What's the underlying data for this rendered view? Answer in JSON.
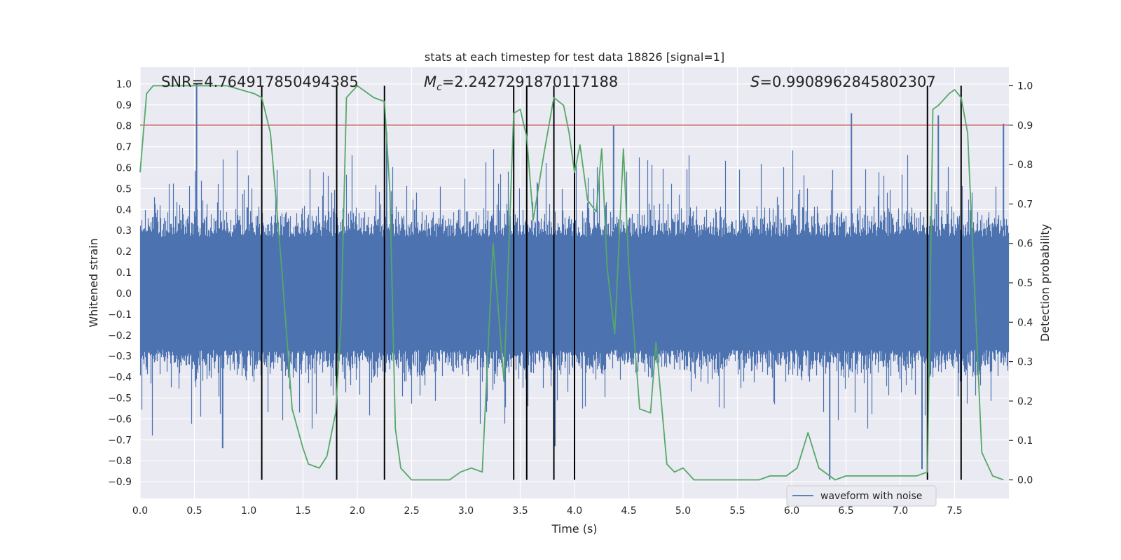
{
  "chart_data": {
    "type": "line",
    "title": "stats at each timestep for test data 18826 [signal=1]",
    "xlabel": "Time (s)",
    "ylabel": "Whitened strain",
    "y2label": "Detection probability",
    "xlim": [
      0.0,
      8.0
    ],
    "ylim": [
      -0.98,
      1.08
    ],
    "y2lim": [
      -0.047,
      1.047
    ],
    "xticks": [
      "0.0",
      "0.5",
      "1.0",
      "1.5",
      "2.0",
      "2.5",
      "3.0",
      "3.5",
      "4.0",
      "4.5",
      "5.0",
      "5.5",
      "6.0",
      "6.5",
      "7.0",
      "7.5"
    ],
    "yticks": [
      "1.0",
      "0.9",
      "0.8",
      "0.7",
      "0.6",
      "0.5",
      "0.4",
      "0.3",
      "0.2",
      "0.1",
      "0.0",
      "-0.1",
      "-0.2",
      "-0.3",
      "-0.4",
      "-0.5",
      "-0.6",
      "-0.7",
      "-0.8",
      "-0.9"
    ],
    "y2ticks": [
      "1.0",
      "0.9",
      "0.8",
      "0.7",
      "0.6",
      "0.5",
      "0.4",
      "0.3",
      "0.2",
      "0.1",
      "0.0"
    ],
    "grid": true,
    "annotations": {
      "snr": "SNR=4.764917850494385",
      "mc_symbol": "M",
      "mc_sub": "c",
      "mc_value": "=2.2427291870117188",
      "s_symbol": "S",
      "s_value": "=0.9908962845802307"
    },
    "threshold": {
      "y2": 0.9,
      "color": "#c44e52"
    },
    "vlines": [
      1.12,
      1.81,
      2.25,
      3.44,
      3.56,
      3.81,
      4.0,
      7.25,
      7.56
    ],
    "series": [
      {
        "name": "waveform with noise",
        "axis": "left",
        "color": "#4c72b0",
        "style": "noisy strain, spread about 0.25, peak 1.0 near t=0.52",
        "spikes": [
          {
            "t": 0.52,
            "y": 1.0
          },
          {
            "t": 2.27,
            "y": 0.77
          },
          {
            "t": 4.36,
            "y": 0.8
          },
          {
            "t": 6.55,
            "y": 0.86
          },
          {
            "t": 7.35,
            "y": 0.85
          },
          {
            "t": 7.95,
            "y": 0.81
          },
          {
            "t": 0.76,
            "y": -0.74
          },
          {
            "t": 6.35,
            "y": -0.89
          },
          {
            "t": 7.2,
            "y": -0.84
          },
          {
            "t": 3.82,
            "y": -0.73
          }
        ]
      },
      {
        "name": "detection probability",
        "axis": "right",
        "color": "#55a868",
        "x": [
          0.0,
          0.06,
          0.12,
          0.25,
          0.5,
          0.8,
          1.05,
          1.12,
          1.2,
          1.3,
          1.4,
          1.5,
          1.55,
          1.65,
          1.72,
          1.8,
          1.85,
          1.9,
          2.0,
          2.05,
          2.15,
          2.25,
          2.3,
          2.35,
          2.4,
          2.5,
          2.6,
          2.7,
          2.85,
          2.95,
          3.05,
          3.15,
          3.25,
          3.35,
          3.44,
          3.5,
          3.56,
          3.62,
          3.72,
          3.81,
          3.9,
          3.95,
          4.0,
          4.05,
          4.12,
          4.2,
          4.25,
          4.3,
          4.37,
          4.45,
          4.5,
          4.6,
          4.7,
          4.75,
          4.85,
          4.92,
          5.0,
          5.1,
          5.2,
          5.4,
          5.5,
          5.7,
          5.8,
          5.95,
          6.05,
          6.15,
          6.25,
          6.4,
          6.5,
          6.6,
          6.8,
          7.0,
          7.15,
          7.25,
          7.3,
          7.35,
          7.45,
          7.5,
          7.56,
          7.62,
          7.75,
          7.85,
          7.95
        ],
        "y": [
          0.78,
          0.98,
          1.0,
          1.0,
          1.0,
          1.0,
          0.98,
          0.97,
          0.88,
          0.55,
          0.18,
          0.08,
          0.04,
          0.03,
          0.06,
          0.17,
          0.4,
          0.97,
          1.0,
          0.99,
          0.97,
          0.96,
          0.73,
          0.13,
          0.03,
          0.0,
          0.0,
          0.0,
          0.0,
          0.02,
          0.03,
          0.02,
          0.6,
          0.25,
          0.93,
          0.94,
          0.87,
          0.66,
          0.83,
          0.97,
          0.95,
          0.88,
          0.78,
          0.85,
          0.71,
          0.68,
          0.84,
          0.54,
          0.37,
          0.84,
          0.54,
          0.18,
          0.17,
          0.35,
          0.04,
          0.02,
          0.03,
          0.0,
          0.0,
          0.0,
          0.0,
          0.0,
          0.01,
          0.01,
          0.03,
          0.12,
          0.03,
          0.0,
          0.01,
          0.01,
          0.01,
          0.01,
          0.01,
          0.02,
          0.94,
          0.95,
          0.98,
          0.99,
          0.97,
          0.88,
          0.07,
          0.01,
          0.0
        ]
      }
    ],
    "legend": {
      "placement": "bottom-right",
      "label": "waveform with noise"
    }
  },
  "colors": {
    "background": "#ffffff",
    "plot_bg": "#eaeaf2",
    "grid": "#ffffff",
    "waveform": "#4c72b0",
    "probability": "#55a868",
    "threshold": "#c44e52",
    "vline": "#000000"
  }
}
